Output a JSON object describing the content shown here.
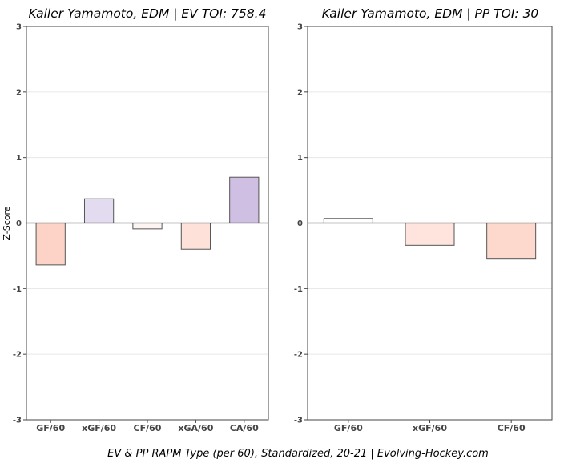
{
  "caption": "EV & PP RAPM Type (per 60), Standardized, 20-21    |    Evolving-Hockey.com",
  "chart_data": [
    {
      "type": "bar",
      "title": "Kailer Yamamoto, EDM  |  EV TOI: 758.4",
      "ylabel": "Z-Score",
      "ylim": [
        -3,
        3
      ],
      "yticks": [
        -3,
        -2,
        -1,
        0,
        1,
        2,
        3
      ],
      "grid": true,
      "categories": [
        "GF/60",
        "xGF/60",
        "CF/60",
        "xGA/60",
        "CA/60"
      ],
      "values": [
        -0.64,
        0.37,
        -0.09,
        -0.4,
        0.7
      ],
      "colors": [
        "#fdd3c7",
        "#e3dcf0",
        "#fef4f1",
        "#fee2da",
        "#cfc0e3"
      ]
    },
    {
      "type": "bar",
      "title": "Kailer Yamamoto, EDM  |  PP TOI: 30",
      "ylabel": "",
      "ylim": [
        -3,
        3
      ],
      "yticks": [
        -3,
        -2,
        -1,
        0,
        1,
        2,
        3
      ],
      "grid": true,
      "categories": [
        "GF/60",
        "xGF/60",
        "CF/60"
      ],
      "values": [
        0.07,
        -0.34,
        -0.54
      ],
      "colors": [
        "#ffffff",
        "#fee4dc",
        "#fdd8cc"
      ]
    }
  ]
}
